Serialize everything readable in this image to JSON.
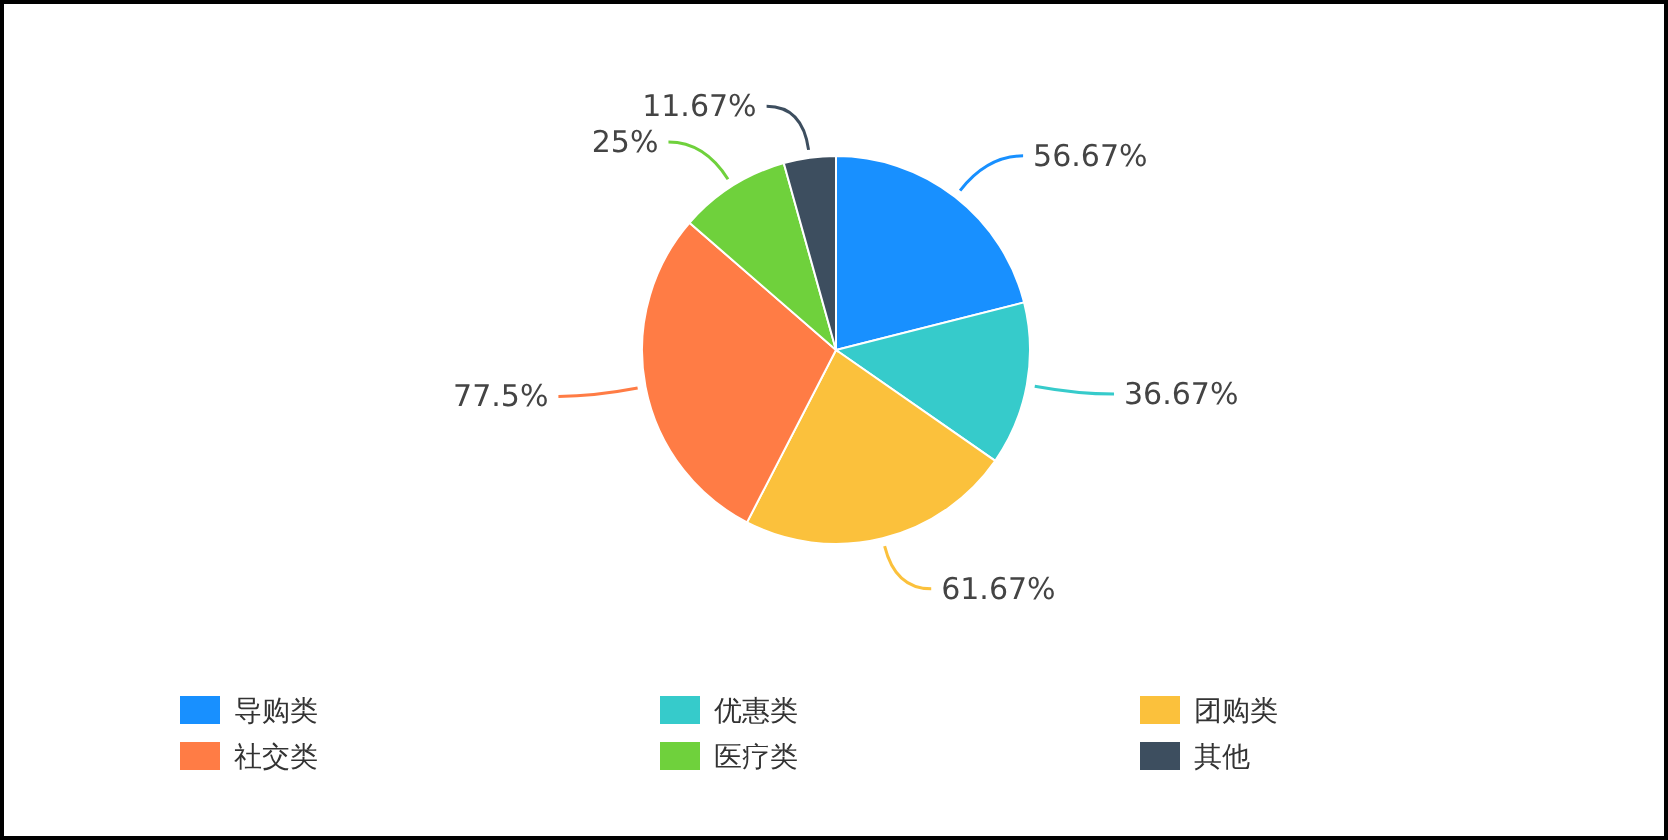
{
  "chart_data": {
    "type": "pie",
    "categories": [
      "导购类",
      "优惠类",
      "团购类",
      "社交类",
      "医疗类",
      "其他"
    ],
    "values": [
      56.67,
      36.67,
      61.67,
      77.5,
      25,
      11.67
    ],
    "value_labels": [
      "56.67%",
      "36.67%",
      "61.67%",
      "77.5%",
      "25%",
      "11.67%"
    ],
    "colors": [
      "#1890ff",
      "#36cbcb",
      "#fbc13c",
      "#ff7c45",
      "#6fd13c",
      "#3d4e5f"
    ],
    "legend": "bottom"
  }
}
